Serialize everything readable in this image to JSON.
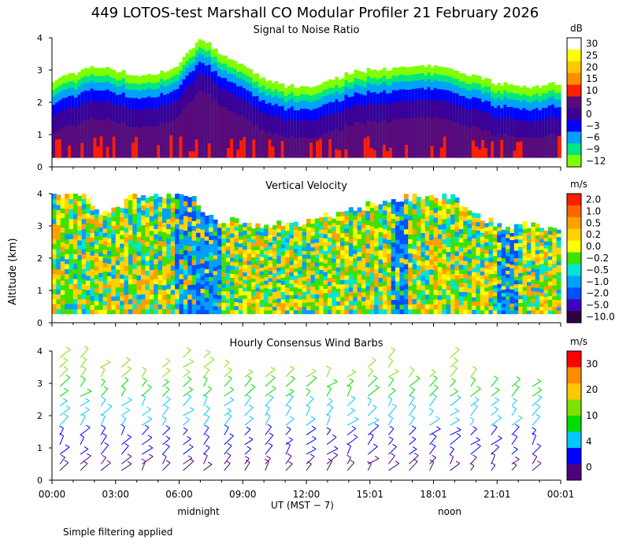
{
  "title": "449 LOTOS-test Marshall CO Modular Profiler 21 February 2026",
  "footer_note": "Simple filtering applied",
  "chart_data": [
    {
      "type": "heatmap",
      "title": "Signal to Noise Ratio",
      "ylabel": "Altitude (km)",
      "ylim": [
        0,
        4
      ],
      "yticks": [
        "0",
        "1",
        "2",
        "3",
        "4"
      ],
      "colorbar_unit": "dB",
      "colorbar_labels": [
        "30",
        "25",
        "20",
        "15",
        "10",
        "5",
        "0",
        "−3",
        "−6",
        "−9",
        "−12"
      ],
      "colorbar_colors": [
        "#ffffff",
        "#ffff00",
        "#ffc800",
        "#ff8c00",
        "#ff1e00",
        "#5a0a7a",
        "#3c0096",
        "#0000ff",
        "#00a0ff",
        "#00e680",
        "#80ff00"
      ],
      "ceiling_km": [
        2.7,
        2.9,
        3.1,
        3.0,
        2.8,
        2.9,
        3.2,
        4.0,
        3.5,
        3.1,
        2.7,
        2.5,
        2.5,
        2.6,
        2.9,
        3.0,
        3.0,
        3.1,
        3.1,
        3.0,
        2.8,
        2.6,
        2.5,
        2.5,
        2.6
      ]
    },
    {
      "type": "heatmap",
      "title": "Vertical Velocity",
      "ylabel": "Altitude (km)",
      "ylim": [
        0,
        4
      ],
      "yticks": [
        "0",
        "1",
        "2",
        "3",
        "4"
      ],
      "colorbar_unit": "m/s",
      "colorbar_labels": [
        "2.0",
        "1.0",
        "0.5",
        "0.2",
        "0.0",
        "−0.2",
        "−0.5",
        "−1.0",
        "−2.0",
        "−5.0",
        "−10.0"
      ],
      "colorbar_colors": [
        "#ff1e00",
        "#ff6400",
        "#ffa000",
        "#ffd200",
        "#ffff00",
        "#40e000",
        "#00e6d0",
        "#00a0ff",
        "#0050ff",
        "#4000c0",
        "#300040"
      ],
      "ceiling_km": [
        4.0,
        4.0,
        3.3,
        4.0,
        4.0,
        4.0,
        3.2,
        3.1,
        3.0,
        3.1,
        3.2,
        3.5,
        3.7,
        3.9,
        3.9,
        3.9,
        3.3,
        3.0,
        3.0,
        2.8
      ]
    },
    {
      "type": "scatter",
      "title": "Hourly Consensus Wind Barbs",
      "ylabel": "Altitude (km)",
      "ylim": [
        0,
        4
      ],
      "yticks": [
        "0",
        "1",
        "2",
        "3",
        "4"
      ],
      "colorbar_unit": "m/s",
      "colorbar_labels": [
        "30",
        "20",
        "10",
        "4",
        "0"
      ],
      "colorbar_colors": [
        "#ff0000",
        "#ff8c00",
        "#ffc800",
        "#80e000",
        "#00dc00",
        "#00c8ff",
        "#0000ff",
        "#50007a"
      ],
      "hours": 24,
      "heights_km": [
        0.3,
        0.5,
        0.8,
        1.1,
        1.4,
        1.7,
        2.0,
        2.3,
        2.6,
        2.9,
        3.2,
        3.5,
        3.8
      ],
      "tops_km": [
        3.8,
        3.9,
        3.6,
        3.5,
        3.3,
        3.7,
        4.0,
        3.9,
        3.5,
        3.3,
        3.4,
        3.2,
        3.3,
        3.4,
        3.4,
        3.5,
        4.0,
        3.3,
        3.2,
        3.8,
        3.2,
        3.1,
        3.0,
        2.9
      ]
    }
  ],
  "x_axis": {
    "ticks": [
      "00:00",
      "03:00",
      "06:00",
      "09:00",
      "12:00",
      "15:01",
      "18:01",
      "21:01",
      "00:01"
    ],
    "xlabel": "UT  (MST − 7)",
    "midnight_label": "midnight",
    "noon_label": "noon"
  }
}
